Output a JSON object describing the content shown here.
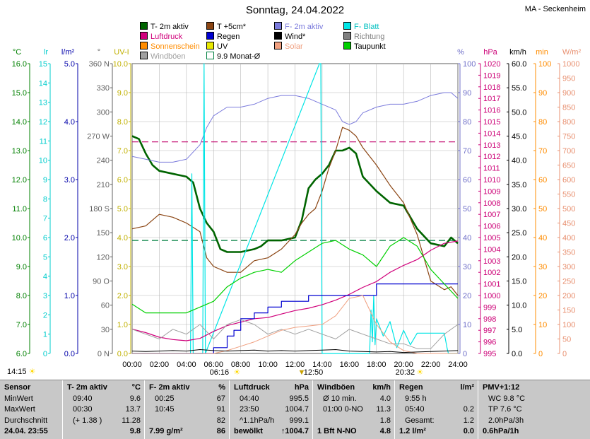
{
  "title": "Sonntag, 24.04.2022",
  "station": "MA - Seckenheim",
  "legend": [
    {
      "label": "T- 2m aktiv",
      "color": "#006400"
    },
    {
      "label": "T +5cm*",
      "color": "#8b4513"
    },
    {
      "label": "F- 2m aktiv",
      "color": "#7b7bdc"
    },
    {
      "label": "F- Blatt",
      "color": "#00e5e5"
    },
    {
      "label": "Luftdruck",
      "color": "#d0007b"
    },
    {
      "label": "Regen",
      "color": "#0000d0"
    },
    {
      "label": "Wind*",
      "color": "#000000"
    },
    {
      "label": "Richtung",
      "color": "#808080"
    },
    {
      "label": "Sonnenschein",
      "color": "#ff8c00"
    },
    {
      "label": "UV",
      "color": "#e8e800"
    },
    {
      "label": "Solar",
      "color": "#f0a080"
    },
    {
      "label": "Taupunkt",
      "color": "#00d000"
    },
    {
      "label": "Windböen",
      "color": "#a0a0a0"
    },
    {
      "label": "9.9 Monat-Ø",
      "color": "#008040"
    }
  ],
  "chart_data": {
    "type": "line",
    "x_ticks": [
      "00:00",
      "02:00",
      "04:00",
      "06:00",
      "08:00",
      "10:00",
      "12:00",
      "14:00",
      "16:00",
      "18:00",
      "20:00",
      "22:00",
      "24:00"
    ],
    "xlim": [
      0,
      24
    ],
    "events": {
      "sunrise": "06:16",
      "noon": "12:50",
      "sunset": "20:32",
      "left_label": "14:15"
    },
    "axes": [
      {
        "unit": "°C",
        "min": 6,
        "max": 16,
        "ticks": [
          "16.0",
          "15.0",
          "14.0",
          "13.0",
          "12.0",
          "11.0",
          "10.0",
          "9.0",
          "8.0",
          "7.0",
          "6.0"
        ],
        "color": "#008000"
      },
      {
        "unit": "lr",
        "min": 0,
        "max": 15,
        "ticks": [
          "15",
          "14",
          "13",
          "12",
          "11",
          "10",
          "9",
          "8",
          "7",
          "6",
          "5",
          "4",
          "3",
          "2",
          "1",
          "0"
        ],
        "color": "#00cccc"
      },
      {
        "unit": "l/m²",
        "min": 0,
        "max": 5,
        "ticks": [
          "5.0",
          "4.0",
          "3.0",
          "2.0",
          "1.0",
          "0.0"
        ],
        "color": "#0000aa"
      },
      {
        "unit": "°",
        "min": 0,
        "max": 360,
        "ticks": [
          "360 N",
          "330",
          "300",
          "270 W",
          "240",
          "210",
          "180 S",
          "150",
          "120",
          "90 O",
          "60",
          "30",
          "0 N"
        ],
        "color": "#606060"
      },
      {
        "unit": "UV-I",
        "min": 0,
        "max": 10,
        "ticks": [
          "10.0",
          "9.0",
          "8.0",
          "7.0",
          "6.0",
          "5.0",
          "4.0",
          "3.0",
          "2.0",
          "1.0",
          "0.0"
        ],
        "color": "#c0b000"
      },
      {
        "unit": "%",
        "min": 0,
        "max": 100,
        "ticks": [
          "100",
          "90",
          "80",
          "70",
          "60",
          "50",
          "40",
          "30",
          "20",
          "10",
          "0"
        ],
        "color": "#7070c8"
      },
      {
        "unit": "hPa",
        "min": 995,
        "max": 1020,
        "ticks": [
          "1020",
          "1019",
          "1018",
          "1017",
          "1016",
          "1015",
          "1014",
          "1013",
          "1012",
          "1011",
          "1010",
          "1009",
          "1008",
          "1007",
          "1006",
          "1005",
          "1004",
          "1003",
          "1002",
          "1001",
          "1000",
          "999",
          "998",
          "997",
          "996",
          "995"
        ],
        "color": "#cc0077"
      },
      {
        "unit": "km/h",
        "min": 0,
        "max": 60,
        "ticks": [
          "60.0",
          "55.0",
          "50.0",
          "45.0",
          "40.0",
          "35.0",
          "30.0",
          "25.0",
          "20.0",
          "15.0",
          "10.0",
          "5.0",
          "0.0"
        ],
        "color": "#000000"
      },
      {
        "unit": "min",
        "min": 0,
        "max": 100,
        "ticks": [
          "100",
          "90",
          "80",
          "70",
          "60",
          "50",
          "40",
          "30",
          "20",
          "10",
          "0"
        ],
        "color": "#ff8c00"
      },
      {
        "unit": "W/m²",
        "min": 0,
        "max": 1000,
        "ticks": [
          "1000",
          "950",
          "900",
          "850",
          "800",
          "750",
          "700",
          "650",
          "600",
          "550",
          "500",
          "450",
          "400",
          "350",
          "300",
          "250",
          "200",
          "150",
          "100",
          "50",
          "0"
        ],
        "color": "#e89070"
      }
    ],
    "reference_lines": [
      {
        "name": "Luftdruck ref",
        "axis": "hPa",
        "value": 1013.25,
        "color": "#c0006a"
      },
      {
        "name": "9.9 Monat-Ø",
        "axis": "°C",
        "value": 9.9,
        "color": "#008040"
      }
    ],
    "series": [
      {
        "name": "T- 2m aktiv",
        "axis": "°C",
        "color": "#006400",
        "x": [
          0,
          0.5,
          1,
          1.5,
          2,
          3,
          4,
          4.5,
          5,
          5.5,
          6,
          6.5,
          7,
          8,
          9,
          9.5,
          10,
          11,
          12,
          12.5,
          13,
          13.5,
          14,
          14.5,
          15,
          15.5,
          16,
          16.5,
          17,
          18,
          19,
          20,
          21,
          22,
          23,
          23.5,
          24
        ],
        "y": [
          13.5,
          13.4,
          12.9,
          12.5,
          12.3,
          12.2,
          12.1,
          11.9,
          11.0,
          10.5,
          10.2,
          9.6,
          9.5,
          9.5,
          9.6,
          9.7,
          9.9,
          9.9,
          10.0,
          10.6,
          11.7,
          12.0,
          12.2,
          12.5,
          13.0,
          13.0,
          13.1,
          12.9,
          12.1,
          11.6,
          11.2,
          11.1,
          10.3,
          9.8,
          9.7,
          10.0,
          9.8
        ]
      },
      {
        "name": "T +5cm*",
        "axis": "°C",
        "color": "#8b4513",
        "x": [
          0,
          1,
          2,
          3,
          4,
          5,
          5.5,
          6,
          6.5,
          7,
          8,
          9,
          10,
          11,
          12,
          12.5,
          13,
          13.5,
          14,
          14.5,
          15,
          15.5,
          16,
          16.5,
          17,
          18,
          19,
          20,
          21,
          22,
          23,
          23.5,
          24
        ],
        "y": [
          10.3,
          10.4,
          10.8,
          10.7,
          10.5,
          10.2,
          9.3,
          9.0,
          8.9,
          8.8,
          8.8,
          9.2,
          9.3,
          9.6,
          10.1,
          10.5,
          10.8,
          11.0,
          11.6,
          12.4,
          13.0,
          13.8,
          13.7,
          13.5,
          13.1,
          12.5,
          11.8,
          11.2,
          10.1,
          8.5,
          8.2,
          8.3,
          8.0
        ]
      },
      {
        "name": "F- 2m aktiv",
        "axis": "%",
        "color": "#7b7bdc",
        "x": [
          0,
          1,
          2,
          3,
          4,
          5,
          5.5,
          6,
          7,
          8,
          9,
          10,
          11,
          12,
          13,
          14,
          15,
          15.5,
          16,
          16.5,
          17,
          18,
          19,
          20,
          21,
          22,
          23,
          23.5,
          24
        ],
        "y": [
          68,
          67,
          66,
          66,
          67,
          72,
          78,
          82,
          85,
          85,
          86,
          88,
          89,
          89,
          88,
          86,
          84,
          80,
          79,
          80,
          83,
          85,
          86,
          86,
          87,
          89,
          90,
          90,
          88
        ]
      },
      {
        "name": "F- Blatt",
        "axis": "UV-I",
        "color": "#00e5e5",
        "x": [
          0,
          4.3,
          4.4,
          4.5,
          4.6,
          5.2,
          5.3,
          5.4,
          13.8,
          13.9,
          14.0,
          17.5,
          17.6,
          17.7,
          17.8,
          17.9,
          18.0,
          18.5,
          19.0,
          19.5,
          20.0,
          20.5,
          21,
          22,
          23,
          23.2,
          23.3,
          24
        ],
        "y": [
          0,
          0,
          6.2,
          0,
          0,
          0,
          10,
          0,
          10,
          10,
          0,
          0,
          1.5,
          0.4,
          2.0,
          0.3,
          1.2,
          0.6,
          1.1,
          0.2,
          0.8,
          0.3,
          0.7,
          0.7,
          0.7,
          0.2,
          0,
          0
        ]
      },
      {
        "name": "Luftdruck",
        "axis": "hPa",
        "color": "#d0007b",
        "x": [
          0,
          1,
          2,
          3,
          4,
          5,
          6,
          7,
          8,
          9,
          10,
          11,
          12,
          13,
          14,
          15,
          16,
          17,
          18,
          19,
          20,
          21,
          22,
          23,
          24
        ],
        "y": [
          997.1,
          996.8,
          996.4,
          996.2,
          996.1,
          996.3,
          996.9,
          997.4,
          997.7,
          998.0,
          998.1,
          998.4,
          998.7,
          998.9,
          999.2,
          999.6,
          1000.1,
          1000.7,
          1001.2,
          1002.0,
          1002.6,
          1003.1,
          1003.9,
          1004.5,
          1004.7
        ]
      },
      {
        "name": "Regen",
        "axis": "l/m²",
        "color": "#0000d0",
        "x": [
          0,
          5,
          6,
          7,
          7.5,
          8,
          9,
          10,
          11,
          12,
          13,
          14,
          17,
          18,
          24
        ],
        "y": [
          0,
          0,
          0.1,
          0.3,
          0.4,
          0.6,
          0.7,
          0.8,
          0.9,
          0.9,
          1.0,
          1.0,
          1.0,
          1.2,
          1.2
        ]
      },
      {
        "name": "Taupunkt",
        "axis": "°C",
        "color": "#00d000",
        "x": [
          0,
          1,
          2,
          3,
          4,
          5,
          6,
          7,
          8,
          9,
          10,
          11,
          12,
          13,
          14,
          15,
          16,
          17,
          18,
          19,
          20,
          21,
          22,
          23,
          24
        ],
        "y": [
          7.7,
          7.4,
          7.4,
          7.4,
          7.4,
          7.6,
          7.8,
          8.3,
          8.6,
          8.8,
          8.9,
          8.8,
          9.2,
          9.5,
          9.8,
          9.9,
          9.6,
          9.4,
          9.0,
          9.7,
          10.0,
          9.7,
          8.9,
          8.4,
          7.9
        ]
      },
      {
        "name": "Windböen",
        "axis": "km/h",
        "color": "#a0a0a0",
        "x": [
          0,
          1,
          2,
          3,
          4,
          5,
          6,
          7,
          8,
          9,
          10,
          11,
          12,
          13,
          14,
          15,
          16,
          17,
          18,
          19,
          20,
          21,
          22,
          23,
          24
        ],
        "y": [
          5,
          4,
          3,
          5,
          4,
          6,
          3,
          6,
          7,
          6,
          4,
          5,
          4,
          5,
          4,
          3,
          5,
          4,
          3,
          2,
          2,
          1,
          1,
          4,
          6
        ]
      },
      {
        "name": "Solar",
        "axis": "W/m²",
        "color": "#f0a080",
        "x": [
          0,
          6,
          7,
          8,
          9,
          10,
          11,
          12,
          13,
          14,
          15,
          16,
          17,
          18,
          19,
          20,
          21,
          24
        ],
        "y": [
          0,
          0,
          10,
          25,
          40,
          60,
          80,
          90,
          95,
          100,
          130,
          190,
          200,
          100,
          40,
          10,
          0,
          0
        ]
      },
      {
        "name": "Wind*",
        "axis": "km/h",
        "color": "#000000",
        "x": [
          0,
          1,
          2,
          3,
          4,
          5,
          6,
          7,
          8,
          9,
          10,
          11,
          12,
          13,
          14,
          15,
          16,
          17,
          18,
          19,
          20,
          21,
          22,
          23,
          24
        ],
        "y": [
          0.5,
          0.4,
          0.5,
          0.6,
          0.5,
          0.8,
          0.6,
          0.5,
          0.6,
          0.7,
          0.5,
          0.6,
          0.5,
          0.6,
          0.7,
          0.8,
          0.5,
          0.4,
          0.3,
          0.4,
          0.2,
          0.3,
          0.4,
          0.5,
          0.6
        ]
      }
    ]
  },
  "stats": {
    "columns": [
      {
        "header": [
          "Sensor",
          ""
        ],
        "rows": [
          [
            "MinWert",
            ""
          ],
          [
            "MaxWert",
            ""
          ],
          [
            "Durchschnitt",
            ""
          ],
          [
            "24.04. 23:55",
            ""
          ]
        ]
      },
      {
        "header": [
          "T- 2m aktiv",
          "°C"
        ],
        "rows": [
          [
            "09:40",
            "9.6"
          ],
          [
            "00:30",
            "13.7"
          ],
          [
            "(+ 1.38 )",
            "11.28"
          ],
          [
            "",
            "9.8"
          ]
        ]
      },
      {
        "header": [
          "F- 2m aktiv",
          "%"
        ],
        "rows": [
          [
            "00:25",
            "67"
          ],
          [
            "10:45",
            "91"
          ],
          [
            "",
            "82"
          ],
          [
            "7.99 g/m²",
            "86"
          ]
        ]
      },
      {
        "header": [
          "Luftdruck",
          "hPa"
        ],
        "rows": [
          [
            "04:40",
            "995.5"
          ],
          [
            "23:50",
            "1004.7"
          ],
          [
            "^1.1hPa/h",
            "999.1"
          ],
          [
            "bewölkt",
            "↑1004.7"
          ]
        ]
      },
      {
        "header": [
          "Windböen",
          "km/h"
        ],
        "rows": [
          [
            "Ø 10 min.",
            "4.0"
          ],
          [
            "01:00   0-NO",
            "11.3"
          ],
          [
            "",
            "1.8"
          ],
          [
            "1 Bft N-NO",
            "4.8"
          ]
        ]
      },
      {
        "header": [
          "Regen",
          "l/m²"
        ],
        "rows": [
          [
            "9:55 h",
            ""
          ],
          [
            "05:40",
            "0.2"
          ],
          [
            "Gesamt:",
            "1.2"
          ],
          [
            "1.2 l/m²",
            "0.0"
          ]
        ]
      },
      {
        "header": [
          "PMV+1:12",
          ""
        ],
        "rows": [
          [
            "WC 9.8 °C",
            ""
          ],
          [
            "TP 7.6 °C",
            ""
          ],
          [
            "2.0hPa/3h",
            ""
          ],
          [
            "0.6hPa/1h",
            ""
          ]
        ]
      }
    ]
  }
}
